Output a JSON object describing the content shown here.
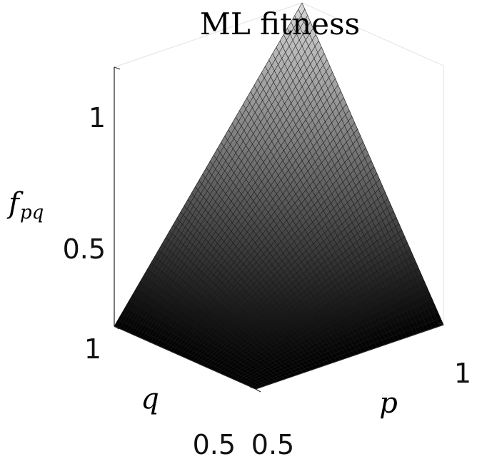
{
  "chart_data": {
    "type": "surface",
    "title": "ML fitness",
    "xlabel": "p",
    "ylabel": "q",
    "zlabel_main": "f",
    "zlabel_sub": "pq",
    "xlim": [
      0.5,
      1
    ],
    "ylim": [
      0.5,
      1
    ],
    "zlim": [
      0.5,
      1
    ],
    "x_ticks": [
      "0.5",
      "1"
    ],
    "y_ticks": [
      "0.5",
      "1"
    ],
    "z_ticks": [
      "0.5",
      "1"
    ],
    "mesh_resolution": 51,
    "corners": [
      {
        "p": 0.5,
        "q": 0.5,
        "f": 0.5
      },
      {
        "p": 1,
        "q": 0.5,
        "f": 0.5
      },
      {
        "p": 0.5,
        "q": 1,
        "f": 0.5
      },
      {
        "p": 1,
        "q": 1,
        "f": 1
      }
    ],
    "colormap": "gray",
    "grid": true
  }
}
